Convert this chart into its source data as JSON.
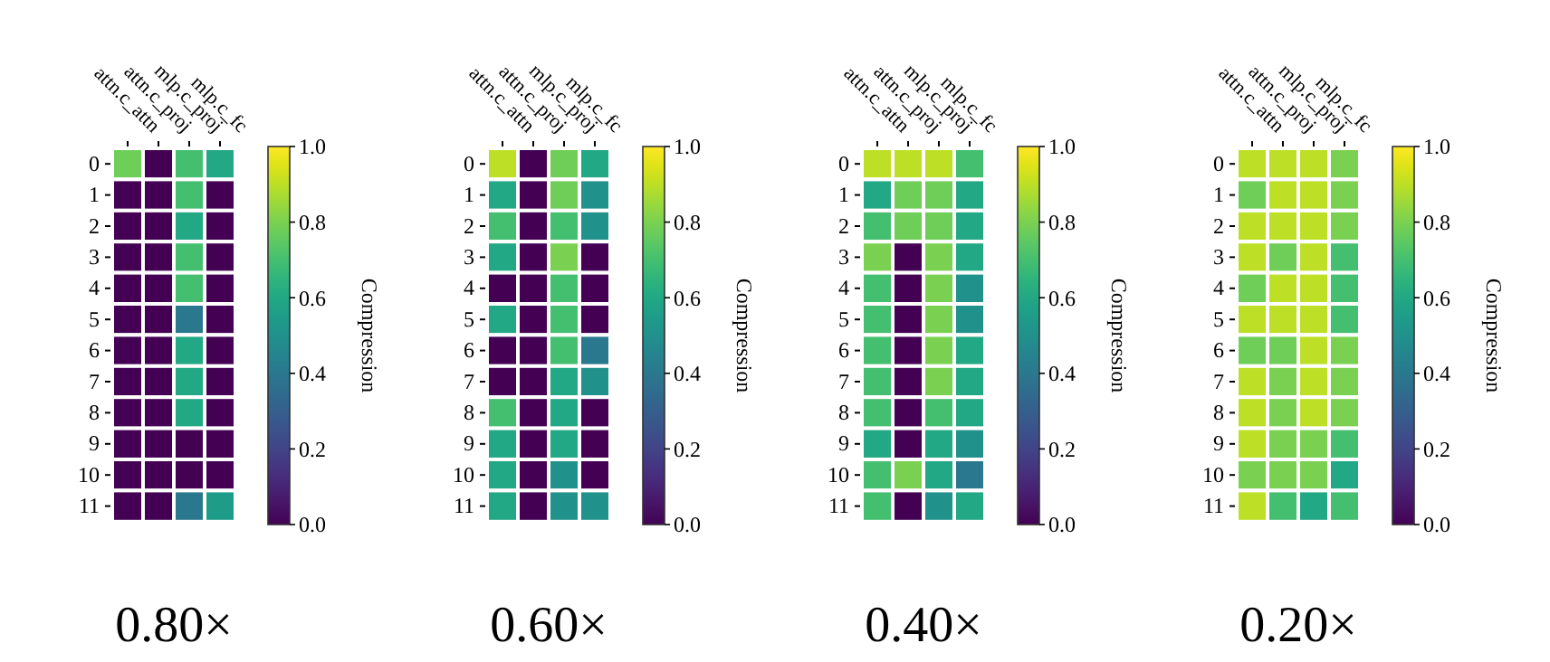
{
  "chart_data": [
    {
      "type": "heatmap",
      "title": "0.80×",
      "clabel": "Compression",
      "categories": [
        "attn.c_attn",
        "attn.c_proj",
        "mlp.c_proj",
        "mlp.c_fc"
      ],
      "y_categories": [
        "0",
        "1",
        "2",
        "3",
        "4",
        "5",
        "6",
        "7",
        "8",
        "9",
        "10",
        "11"
      ],
      "cells": [
        [
          0.78,
          0,
          0.7,
          0.6
        ],
        [
          0,
          0,
          0.7,
          0
        ],
        [
          0,
          0,
          0.6,
          0
        ],
        [
          0,
          0,
          0.7,
          0
        ],
        [
          0,
          0,
          0.7,
          0
        ],
        [
          0,
          0,
          0.4,
          0
        ],
        [
          0,
          0,
          0.6,
          0
        ],
        [
          0,
          0,
          0.6,
          0
        ],
        [
          0,
          0,
          0.6,
          0
        ],
        [
          0,
          0,
          0,
          0
        ],
        [
          0,
          0,
          0,
          0
        ],
        [
          0,
          0,
          0.4,
          0.55
        ]
      ],
      "clim": [
        0,
        1
      ],
      "cticks": [
        {
          "value": 0,
          "label": "0.0"
        },
        {
          "value": 0.2,
          "label": "0.2"
        },
        {
          "value": 0.4,
          "label": "0.4"
        },
        {
          "value": 0.6,
          "label": "0.6"
        },
        {
          "value": 0.8,
          "label": "0.8"
        },
        {
          "value": 1,
          "label": "1.0"
        }
      ]
    },
    {
      "type": "heatmap",
      "title": "0.60×",
      "clabel": "Compression",
      "categories": [
        "attn.c_attn",
        "attn.c_proj",
        "mlp.c_proj",
        "mlp.c_fc"
      ],
      "y_categories": [
        "0",
        "1",
        "2",
        "3",
        "4",
        "5",
        "6",
        "7",
        "8",
        "9",
        "10",
        "11"
      ],
      "cells": [
        [
          0.9,
          0,
          0.78,
          0.6
        ],
        [
          0.6,
          0,
          0.78,
          0.5
        ],
        [
          0.7,
          0,
          0.7,
          0.5
        ],
        [
          0.6,
          0,
          0.8,
          0
        ],
        [
          0,
          0,
          0.7,
          0
        ],
        [
          0.6,
          0,
          0.7,
          0
        ],
        [
          0,
          0,
          0.7,
          0.4
        ],
        [
          0,
          0,
          0.6,
          0.5
        ],
        [
          0.7,
          0,
          0.6,
          0
        ],
        [
          0.6,
          0,
          0.6,
          0
        ],
        [
          0.6,
          0,
          0.5,
          0
        ],
        [
          0.6,
          0,
          0.5,
          0.5
        ]
      ],
      "clim": [
        0,
        1
      ],
      "cticks": [
        {
          "value": 0,
          "label": "0.0"
        },
        {
          "value": 0.2,
          "label": "0.2"
        },
        {
          "value": 0.4,
          "label": "0.4"
        },
        {
          "value": 0.6,
          "label": "0.6"
        },
        {
          "value": 0.8,
          "label": "0.8"
        },
        {
          "value": 1,
          "label": "1.0"
        }
      ]
    },
    {
      "type": "heatmap",
      "title": "0.40×",
      "clabel": "Compression",
      "categories": [
        "attn.c_attn",
        "attn.c_proj",
        "mlp.c_proj",
        "mlp.c_fc"
      ],
      "y_categories": [
        "0",
        "1",
        "2",
        "3",
        "4",
        "5",
        "6",
        "7",
        "8",
        "9",
        "10",
        "11"
      ],
      "cells": [
        [
          0.9,
          0.9,
          0.9,
          0.7
        ],
        [
          0.6,
          0.78,
          0.78,
          0.6
        ],
        [
          0.7,
          0.78,
          0.78,
          0.6
        ],
        [
          0.8,
          0,
          0.8,
          0.6
        ],
        [
          0.7,
          0,
          0.8,
          0.5
        ],
        [
          0.7,
          0,
          0.8,
          0.5
        ],
        [
          0.7,
          0,
          0.8,
          0.6
        ],
        [
          0.7,
          0,
          0.8,
          0.6
        ],
        [
          0.7,
          0,
          0.7,
          0.6
        ],
        [
          0.6,
          0,
          0.6,
          0.5
        ],
        [
          0.7,
          0.8,
          0.6,
          0.4
        ],
        [
          0.7,
          0,
          0.5,
          0.6
        ]
      ],
      "clim": [
        0,
        1
      ],
      "cticks": [
        {
          "value": 0,
          "label": "0.0"
        },
        {
          "value": 0.2,
          "label": "0.2"
        },
        {
          "value": 0.4,
          "label": "0.4"
        },
        {
          "value": 0.6,
          "label": "0.6"
        },
        {
          "value": 0.8,
          "label": "0.8"
        },
        {
          "value": 1,
          "label": "1.0"
        }
      ]
    },
    {
      "type": "heatmap",
      "title": "0.20×",
      "clabel": "Compression",
      "categories": [
        "attn.c_attn",
        "attn.c_proj",
        "mlp.c_proj",
        "mlp.c_fc"
      ],
      "y_categories": [
        "0",
        "1",
        "2",
        "3",
        "4",
        "5",
        "6",
        "7",
        "8",
        "9",
        "10",
        "11"
      ],
      "cells": [
        [
          0.9,
          0.9,
          0.9,
          0.8
        ],
        [
          0.78,
          0.9,
          0.9,
          0.8
        ],
        [
          0.9,
          0.9,
          0.9,
          0.8
        ],
        [
          0.9,
          0.78,
          0.9,
          0.7
        ],
        [
          0.78,
          0.9,
          0.9,
          0.7
        ],
        [
          0.9,
          0.9,
          0.9,
          0.7
        ],
        [
          0.78,
          0.78,
          0.9,
          0.8
        ],
        [
          0.9,
          0.8,
          0.9,
          0.8
        ],
        [
          0.9,
          0.8,
          0.9,
          0.8
        ],
        [
          0.9,
          0.8,
          0.8,
          0.7
        ],
        [
          0.8,
          0.8,
          0.8,
          0.6
        ],
        [
          0.9,
          0.7,
          0.6,
          0.7
        ]
      ],
      "clim": [
        0,
        1
      ],
      "cticks": [
        {
          "value": 0,
          "label": "0.0"
        },
        {
          "value": 0.2,
          "label": "0.2"
        },
        {
          "value": 0.4,
          "label": "0.4"
        },
        {
          "value": 0.6,
          "label": "0.6"
        },
        {
          "value": 0.8,
          "label": "0.8"
        },
        {
          "value": 1,
          "label": "1.0"
        }
      ]
    }
  ]
}
